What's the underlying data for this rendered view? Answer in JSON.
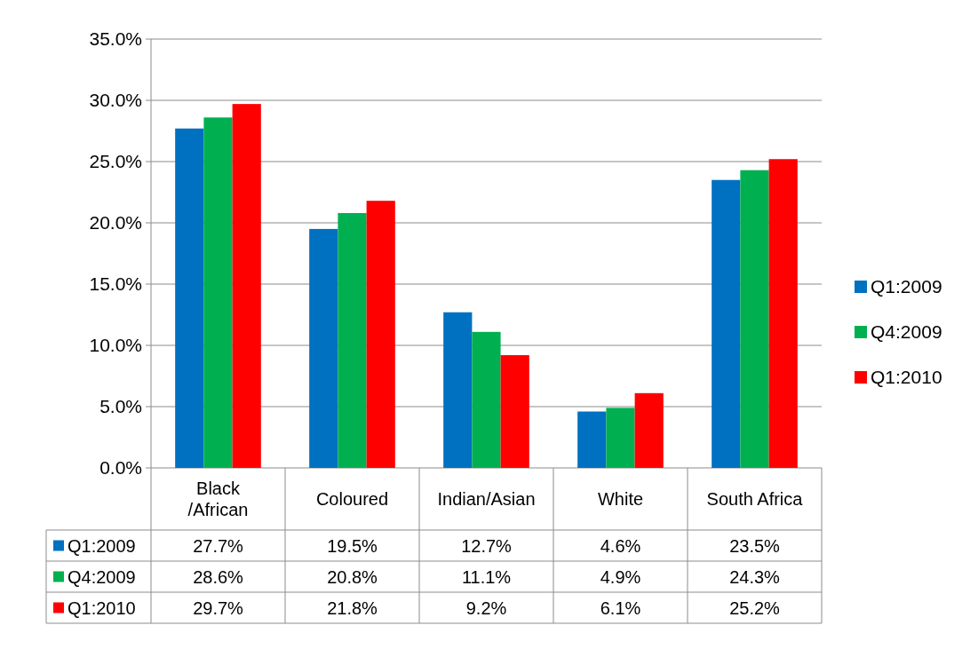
{
  "chart_data": {
    "type": "bar",
    "categories": [
      "Black /African",
      "Coloured",
      "Indian/Asian",
      "White",
      "South Africa"
    ],
    "series": [
      {
        "name": "Q1:2009",
        "color": "#0070c0",
        "values": [
          27.7,
          19.5,
          12.7,
          4.6,
          23.5
        ],
        "value_labels": [
          "27.7%",
          "19.5%",
          "12.7%",
          "4.6%",
          "23.5%"
        ]
      },
      {
        "name": "Q4:2009",
        "color": "#00b050",
        "values": [
          28.6,
          20.8,
          11.1,
          4.9,
          24.3
        ],
        "value_labels": [
          "28.6%",
          "20.8%",
          "11.1%",
          "4.9%",
          "24.3%"
        ]
      },
      {
        "name": "Q1:2010",
        "color": "#ff0000",
        "values": [
          29.7,
          21.8,
          9.2,
          6.1,
          25.2
        ],
        "value_labels": [
          "29.7%",
          "21.8%",
          "9.2%",
          "6.1%",
          "25.2%"
        ]
      }
    ],
    "ylim": [
      0,
      35
    ],
    "yticks": [
      {
        "value": 0,
        "label": "0.0%"
      },
      {
        "value": 5,
        "label": "5.0%"
      },
      {
        "value": 10,
        "label": "10.0%"
      },
      {
        "value": 15,
        "label": "15.0%"
      },
      {
        "value": 20,
        "label": "20.0%"
      },
      {
        "value": 25,
        "label": "25.0%"
      },
      {
        "value": 30,
        "label": "30.0%"
      },
      {
        "value": 35,
        "label": "35.0%"
      }
    ],
    "grid": "y",
    "legend": "right"
  }
}
